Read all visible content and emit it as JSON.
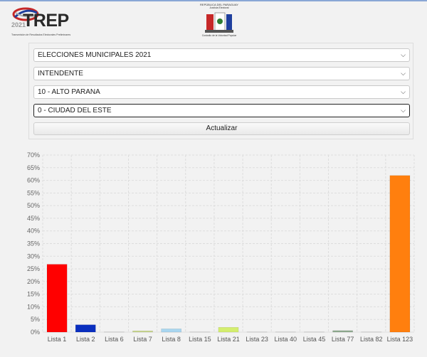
{
  "header": {
    "trep_year": "2021",
    "trep_word": "TREP",
    "trep_subtitle": "Transmisión de Resultados Electorales Preliminares",
    "tsje_line1": "REPÚBLICA DEL PARAGUAY",
    "tsje_line2": "Justicia Electoral",
    "tsje_line3": "Custodio de la Voluntad Popular"
  },
  "filters": {
    "election": "ELECCIONES MUNICIPALES 2021",
    "position": "INTENDENTE",
    "department": "10 - ALTO PARANA",
    "district": "0 - CIUDAD DEL ESTE",
    "update_label": "Actualizar"
  },
  "colors": {
    "accent": "#8aa7d6",
    "grid": "#dddddd"
  },
  "chart_data": {
    "type": "bar",
    "categories": [
      "Lista 1",
      "Lista 2",
      "Lista 6",
      "Lista 7",
      "Lista 8",
      "Lista 15",
      "Lista 21",
      "Lista 23",
      "Lista 40",
      "Lista 45",
      "Lista 77",
      "Lista 82",
      "Lista 123"
    ],
    "values": [
      26.8,
      2.9,
      0.1,
      0.5,
      1.3,
      0.1,
      1.9,
      0.1,
      0.1,
      0.1,
      0.6,
      0.1,
      61.9
    ],
    "colors": [
      "#ff0000",
      "#0a2fbf",
      "#e8e8e8",
      "#c9d88a",
      "#a9d6f0",
      "#e8e8e8",
      "#d4ee6e",
      "#e8e8e8",
      "#e8e8e8",
      "#e8e8e8",
      "#8faa8f",
      "#e8e8e8",
      "#ff7f0e"
    ],
    "yticks": [
      "0%",
      "5%",
      "10%",
      "15%",
      "20%",
      "25%",
      "30%",
      "35%",
      "40%",
      "45%",
      "50%",
      "55%",
      "60%",
      "65%",
      "70%"
    ],
    "ylim": [
      0,
      70
    ],
    "grid": true,
    "title": "",
    "xlabel": "",
    "ylabel": ""
  }
}
